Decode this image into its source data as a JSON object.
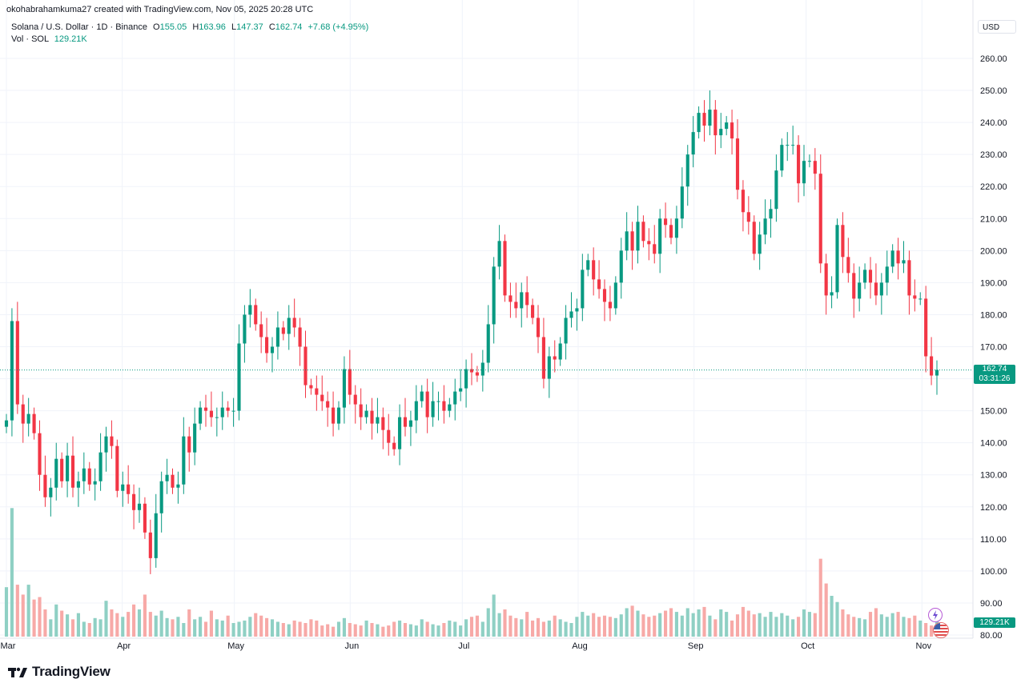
{
  "header": {
    "note": "okohabrahamkuma27 created with TradingView.com, Nov 05, 2025 20:28 UTC",
    "symbol": "Solana / U.S. Dollar · 1D · Binance",
    "open_label": "O",
    "open": "155.05",
    "high_label": "H",
    "high": "163.96",
    "low_label": "L",
    "low": "147.37",
    "close_label": "C",
    "close": "162.74",
    "change": "+7.68 (+4.95%)",
    "vol_label": "Vol · SOL",
    "vol_value": "129.21K",
    "currency": "USD"
  },
  "price_axis": {
    "last_price": "162.74",
    "countdown": "03:31:26",
    "volume_label": "129.21K"
  },
  "brand": {
    "name": "TradingView"
  },
  "colors": {
    "up": "#089981",
    "down": "#f23645",
    "up_volume": "#8fd0c4",
    "down_volume": "#f7a9a7",
    "grid": "#f0f3fa"
  },
  "chart_data": {
    "type": "candlestick",
    "title": "Solana / U.S. Dollar · 1D · Binance",
    "ylim": [
      80,
      265
    ],
    "y_ticks": [
      "260.00",
      "250.00",
      "240.00",
      "230.00",
      "220.00",
      "210.00",
      "200.00",
      "190.00",
      "180.00",
      "170.00",
      "160.00",
      "150.00",
      "140.00",
      "130.00",
      "120.00",
      "110.00",
      "100.00",
      "90.00",
      "80.00"
    ],
    "x_ticks": [
      "Mar",
      "Apr",
      "May",
      "Jun",
      "Jul",
      "Aug",
      "Sep",
      "Oct",
      "Nov"
    ],
    "x_range": [
      "2025-03-01",
      "2025-11-05"
    ],
    "last_price": 162.74,
    "volume_max_k": 1100,
    "closes": [
      147,
      178,
      152,
      146,
      149,
      143,
      130,
      123,
      126,
      135,
      128,
      136,
      126,
      128,
      132,
      127,
      128,
      137,
      142,
      139,
      125,
      127,
      124,
      119,
      121,
      112,
      104,
      118,
      128,
      130,
      126,
      127,
      142,
      137,
      146,
      151,
      150,
      148,
      148,
      151,
      150,
      150,
      171,
      180,
      183,
      177,
      173,
      168,
      170,
      176,
      174,
      179,
      176,
      170,
      158,
      157,
      155,
      153,
      151,
      146,
      151,
      163,
      155,
      152,
      148,
      150,
      146,
      148,
      144,
      140,
      138,
      148,
      145,
      147,
      153,
      156,
      148,
      153,
      153,
      150,
      152,
      156,
      157,
      163,
      162,
      161,
      165,
      177,
      195,
      203,
      186,
      184,
      182,
      187,
      183,
      179,
      173,
      160,
      167,
      166,
      171,
      179,
      181,
      182,
      194,
      197,
      191,
      188,
      184,
      182,
      190,
      200,
      206,
      200,
      209,
      203,
      202,
      199,
      210,
      208,
      204,
      210,
      220,
      230,
      237,
      243,
      239,
      244,
      236,
      238,
      240,
      235,
      219,
      212,
      209,
      199,
      205,
      210,
      213,
      225,
      233,
      233,
      233,
      221,
      228,
      228,
      224,
      196,
      186,
      187,
      208,
      198,
      193,
      185,
      190,
      194,
      190,
      186,
      190,
      195,
      200,
      196,
      197,
      186,
      185,
      185,
      167,
      161,
      162.74
    ],
    "volumes_k": [
      400,
      1040,
      420,
      340,
      420,
      300,
      320,
      220,
      140,
      260,
      210,
      180,
      140,
      190,
      120,
      110,
      150,
      140,
      290,
      220,
      190,
      160,
      200,
      260,
      220,
      340,
      200,
      170,
      210,
      150,
      140,
      160,
      110,
      220,
      140,
      160,
      120,
      210,
      140,
      130,
      170,
      110,
      120,
      130,
      160,
      190,
      170,
      150,
      140,
      120,
      110,
      100,
      130,
      120,
      110,
      140,
      130,
      90,
      100,
      80,
      120,
      150,
      110,
      100,
      90,
      130,
      110,
      100,
      80,
      90,
      120,
      130,
      110,
      100,
      90,
      140,
      120,
      100,
      90,
      110,
      130,
      120,
      90,
      140,
      160,
      170,
      120,
      230,
      340,
      190,
      220,
      170,
      150,
      140,
      200,
      130,
      150,
      120,
      130,
      170,
      140,
      120,
      110,
      160,
      200,
      170,
      190,
      160,
      170,
      160,
      150,
      180,
      230,
      250,
      210,
      180,
      160,
      170,
      190,
      210,
      230,
      200,
      170,
      230,
      190,
      220,
      240,
      170,
      140,
      220,
      200,
      130,
      180,
      240,
      210,
      180,
      190,
      160,
      200,
      160,
      190,
      170,
      140,
      160,
      220,
      200,
      190,
      630,
      430,
      330,
      280,
      220,
      180,
      160,
      150,
      140,
      200,
      230,
      180,
      160,
      190,
      200,
      160,
      150,
      170,
      130,
      110,
      90,
      129
    ]
  }
}
